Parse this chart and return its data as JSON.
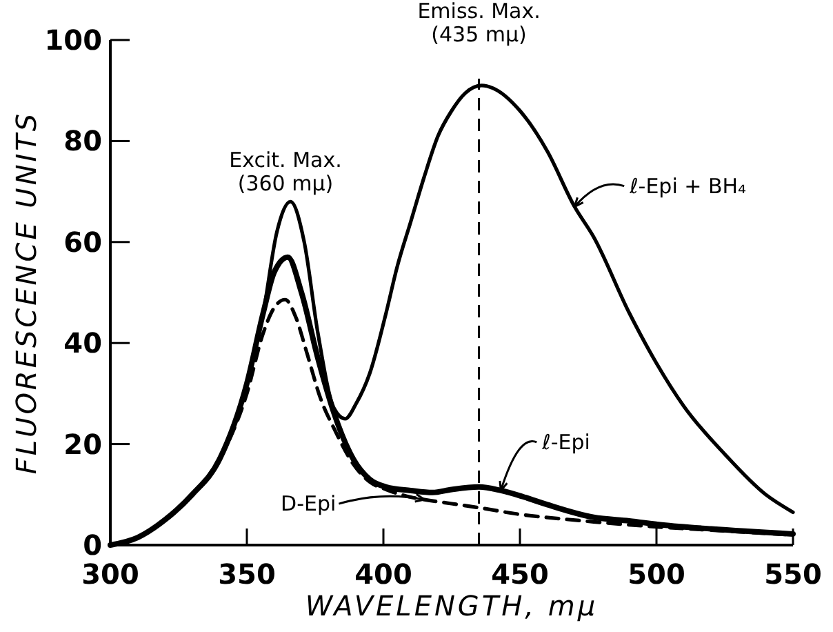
{
  "chart_data": {
    "type": "line",
    "xlabel": "WAVELENGTH, mμ",
    "ylabel": "FLUORESCENCE UNITS",
    "xlim": [
      300,
      550
    ],
    "ylim": [
      0,
      100
    ],
    "xticks": [
      300,
      350,
      400,
      450,
      500,
      550
    ],
    "yticks": [
      0,
      20,
      40,
      60,
      80,
      100
    ],
    "grid": false,
    "marker": "none",
    "series": [
      {
        "name": "ℓ-Epi + BH₄",
        "color": "#000000",
        "line_style": "solid",
        "x": [
          300,
          310,
          320,
          330,
          340,
          350,
          356,
          361,
          366,
          371,
          376,
          382,
          386,
          390,
          395,
          401,
          405,
          410,
          415,
          420,
          425,
          430,
          436,
          440,
          450,
          460,
          470,
          477,
          490,
          500,
          510,
          525,
          540,
          550
        ],
        "values": [
          0,
          1.5,
          5,
          10,
          17,
          32,
          46,
          62,
          68,
          60,
          42,
          27,
          25,
          28,
          34,
          46,
          55,
          64,
          73,
          81,
          86,
          89.5,
          91,
          90.5,
          86,
          78,
          67,
          61,
          46,
          36,
          27.5,
          18,
          10,
          6.5
        ]
      },
      {
        "name": "ℓ-Epi",
        "color": "#000000",
        "line_style": "solid",
        "x": [
          300,
          310,
          320,
          330,
          340,
          350,
          356,
          360,
          365,
          370,
          376,
          382,
          389,
          395,
          401,
          410,
          418,
          425,
          435,
          443,
          451,
          460,
          477,
          490,
          502,
          520,
          550
        ],
        "values": [
          0,
          1.5,
          5,
          10,
          17,
          32,
          46,
          54,
          57,
          50,
          37,
          26,
          17,
          13,
          11.5,
          10.8,
          10.4,
          11,
          11.5,
          10.8,
          9.6,
          8,
          5.5,
          4.8,
          4,
          3.2,
          2.2
        ]
      },
      {
        "name": "D-Epi",
        "color": "#000000",
        "line_style": "dashed",
        "x": [
          300,
          310,
          320,
          330,
          340,
          350,
          356,
          360,
          364,
          368,
          372,
          377,
          382,
          389,
          395,
          401,
          410,
          415,
          425,
          435,
          451,
          465,
          477,
          500,
          525,
          550
        ],
        "values": [
          0,
          1.5,
          5,
          10,
          17,
          30,
          42,
          47,
          48.6,
          45,
          38,
          29,
          23,
          16,
          12.5,
          11,
          9.5,
          9,
          8.2,
          7.4,
          6,
          5.2,
          4.6,
          3.6,
          2.8,
          2
        ]
      }
    ],
    "ref_lines": [
      {
        "axis": "x",
        "value": 435,
        "label": "Emiss. Max. (435 mμ)",
        "line_style": "dashed",
        "color": "#000000"
      }
    ],
    "annotations": [
      "Excit. Max. (360 mμ)"
    ]
  }
}
